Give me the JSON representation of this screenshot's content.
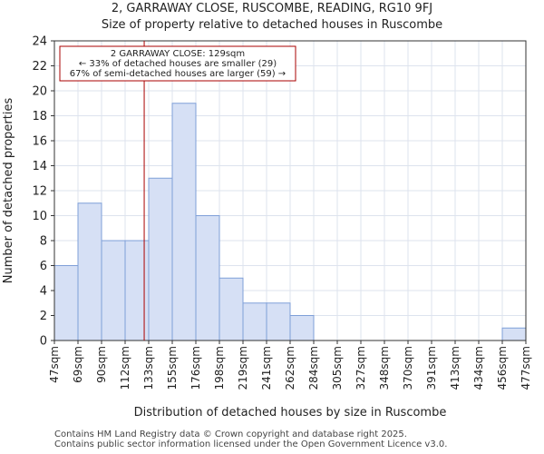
{
  "title_line1": "2, GARRAWAY CLOSE, RUSCOMBE, READING, RG10 9FJ",
  "title_line2": "Size of property relative to detached houses in Ruscombe",
  "footer_line1": "Contains HM Land Registry data © Crown copyright and database right 2025.",
  "footer_line2": "Contains public sector information licensed under the Open Government Licence v3.0.",
  "chart_data": {
    "type": "bar",
    "title": "Size of property relative to detached houses in Ruscombe",
    "xlabel": "Distribution of detached houses by size in Ruscombe",
    "ylabel": "Number of detached properties",
    "bin_edges": [
      47,
      69,
      90,
      112,
      133,
      155,
      176,
      198,
      219,
      241,
      262,
      284,
      305,
      327,
      348,
      370,
      391,
      413,
      434,
      456,
      477
    ],
    "x_tick_labels": [
      "47sqm",
      "69sqm",
      "90sqm",
      "112sqm",
      "133sqm",
      "155sqm",
      "176sqm",
      "198sqm",
      "219sqm",
      "241sqm",
      "262sqm",
      "284sqm",
      "305sqm",
      "327sqm",
      "348sqm",
      "370sqm",
      "391sqm",
      "413sqm",
      "434sqm",
      "456sqm",
      "477sqm"
    ],
    "values": [
      6,
      11,
      8,
      8,
      13,
      19,
      10,
      5,
      3,
      3,
      2,
      0,
      0,
      0,
      0,
      0,
      0,
      0,
      0,
      1
    ],
    "ylim": [
      0,
      24
    ],
    "y_ticks": [
      0,
      2,
      4,
      6,
      8,
      10,
      12,
      14,
      16,
      18,
      20,
      22,
      24
    ],
    "grid": true,
    "bar_fill": "#d6e0f5",
    "bar_edge": "#7f9fd8",
    "marker": {
      "value": 129,
      "color": "#aa0000",
      "label_line1": "2 GARRAWAY CLOSE: 129sqm",
      "label_line2": "← 33% of detached houses are smaller (29)",
      "label_line3": "67% of semi-detached houses are larger (59) →"
    }
  }
}
